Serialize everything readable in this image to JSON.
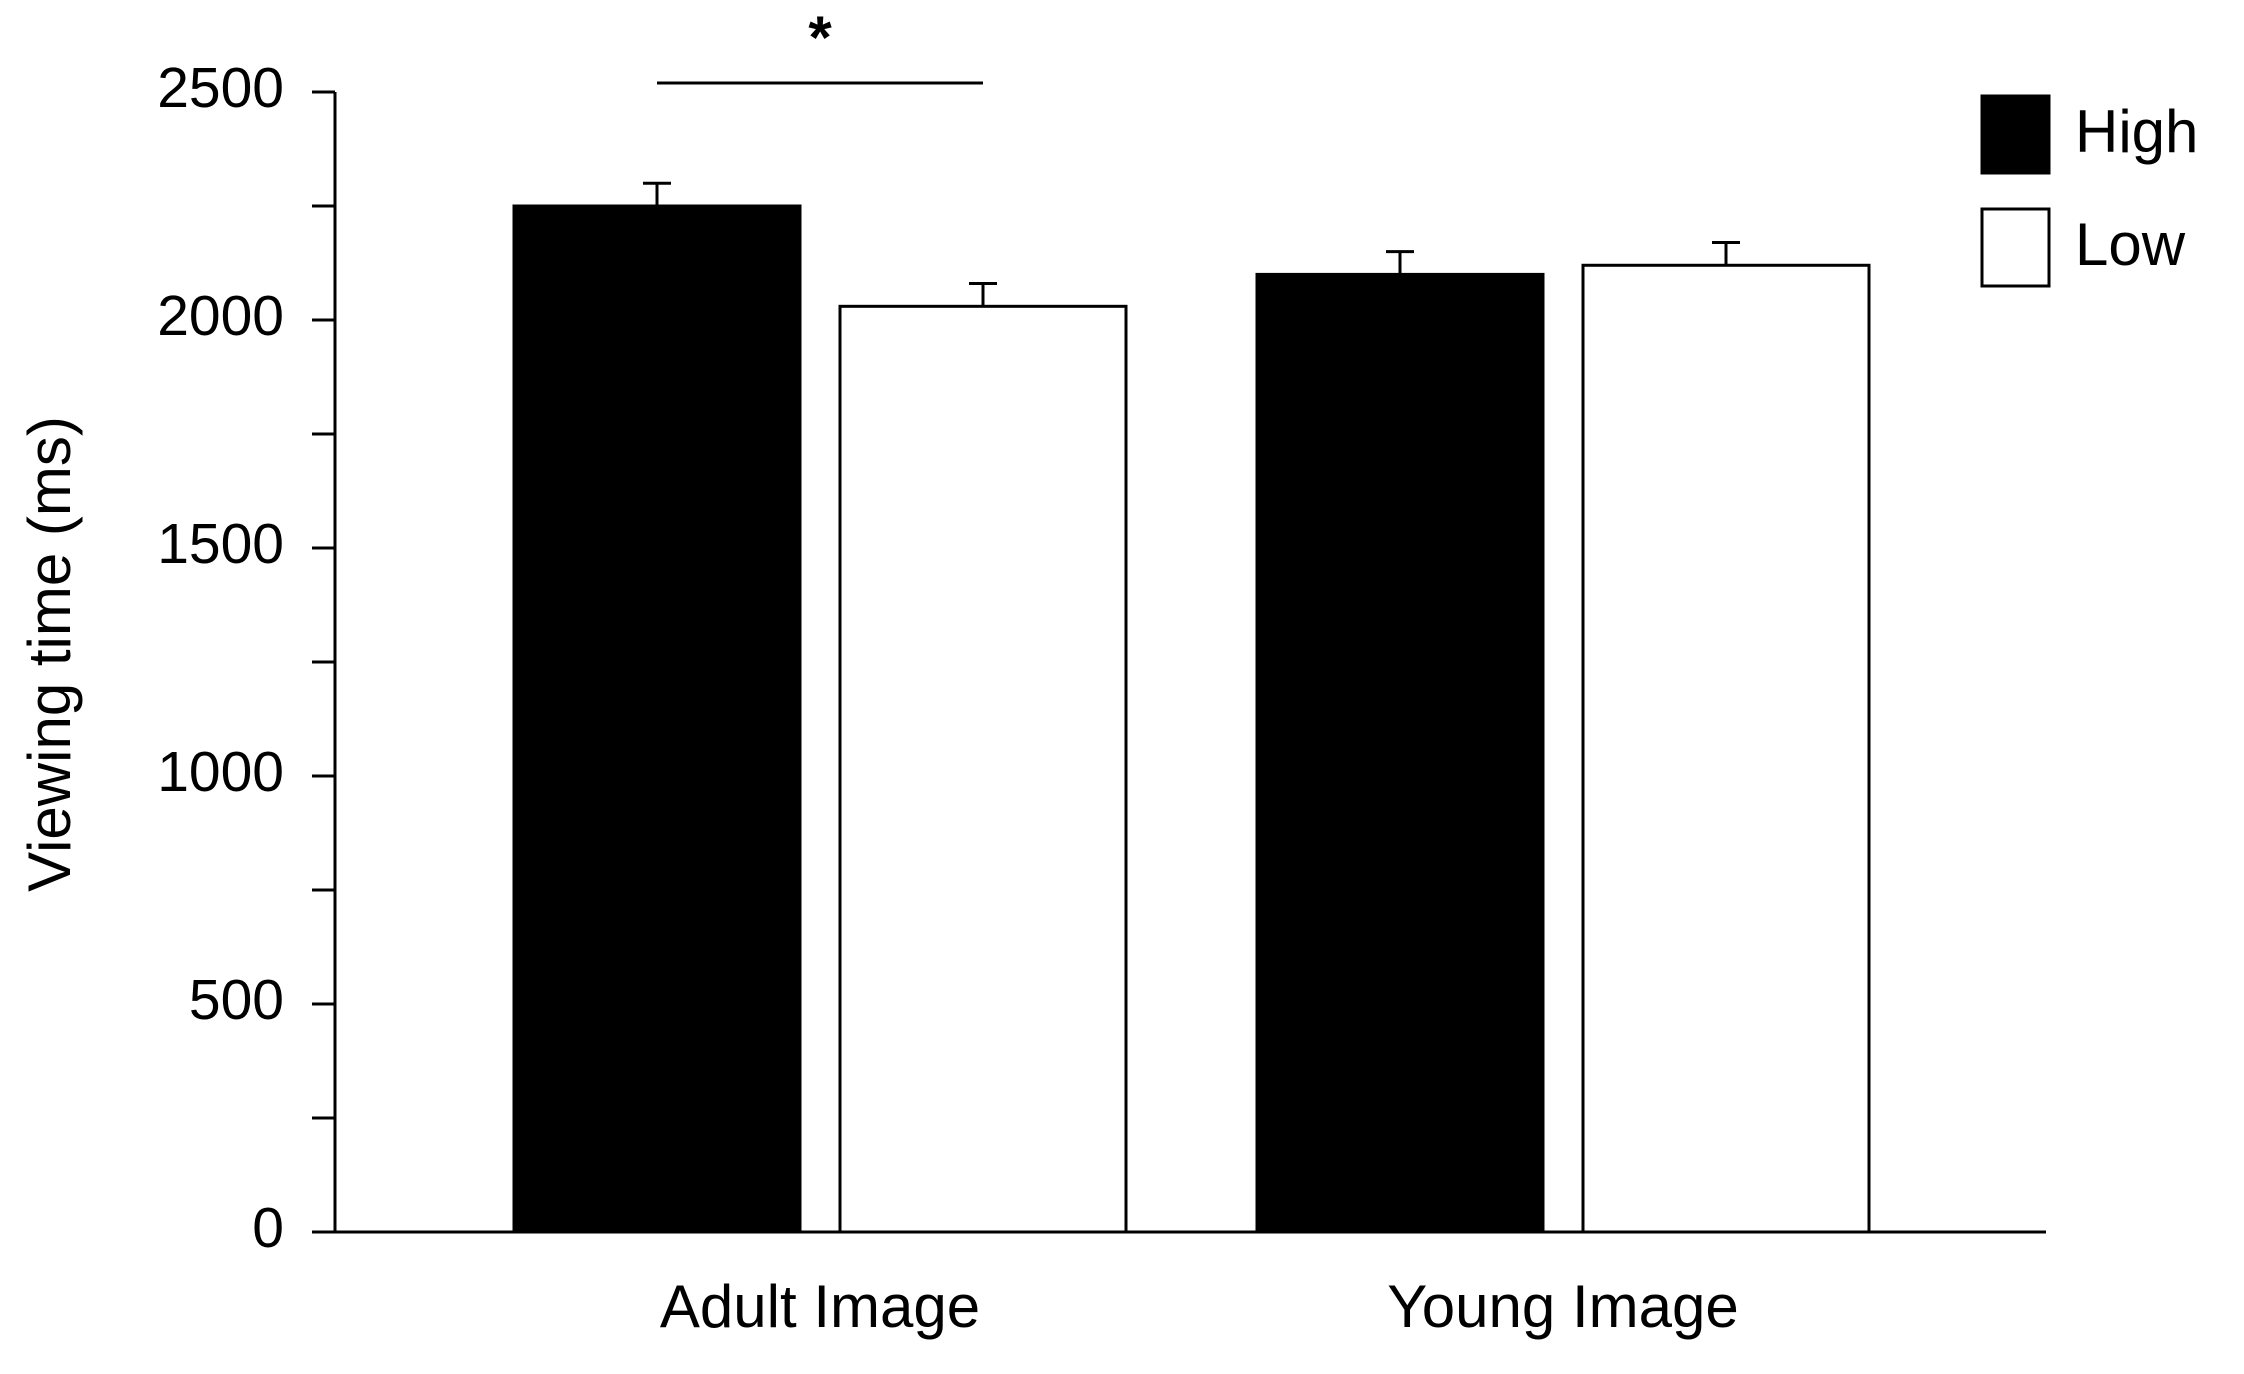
{
  "chart_data": {
    "type": "bar",
    "y_label": "Viewing time (ms)",
    "categories": [
      "Adult Image",
      "Young Image"
    ],
    "series": [
      {
        "name": "High",
        "color": "#000000",
        "values": [
          2250,
          2100
        ],
        "errors": [
          50,
          50
        ]
      },
      {
        "name": "Low",
        "color": "#ffffff",
        "values": [
          2030,
          2120
        ],
        "errors": [
          50,
          50
        ]
      }
    ],
    "ylim": [
      0,
      2500
    ],
    "yticks": [
      0,
      500,
      1000,
      1500,
      2000,
      2500
    ],
    "minor_yticks": [
      250,
      750,
      1250,
      1750,
      2250
    ],
    "annotation": "*",
    "legend": "top-right",
    "grid": false
  }
}
